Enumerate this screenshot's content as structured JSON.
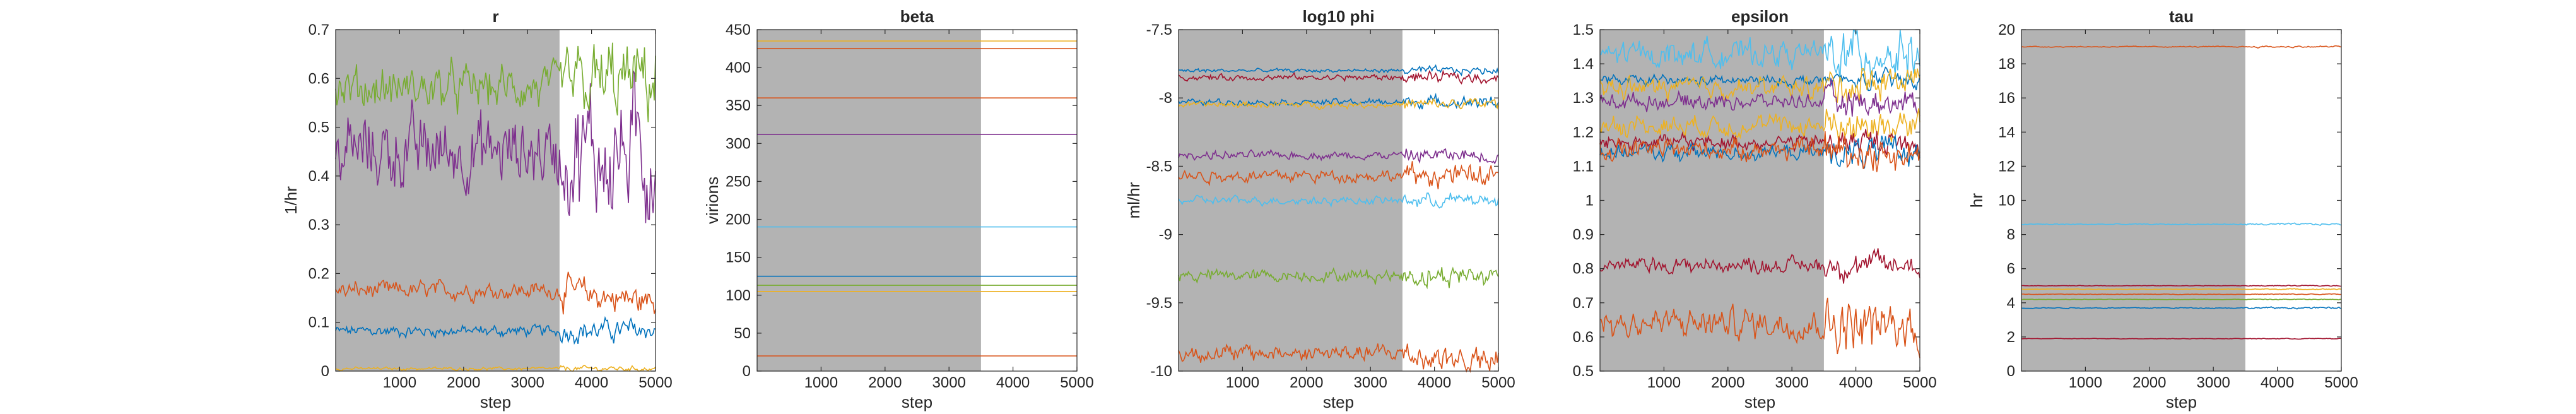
{
  "figure": {
    "xlabel": "step"
  },
  "colors": {
    "shade": "#b3b3b3",
    "series": [
      "#0072bd",
      "#d95319",
      "#edb120",
      "#7e2f8e",
      "#77ac30",
      "#4dbeee",
      "#a2142f"
    ]
  },
  "chart_data": [
    {
      "type": "line",
      "title": "r",
      "xlabel": "step",
      "ylabel": "1/hr",
      "xlim": [
        0,
        5000
      ],
      "ylim": [
        0,
        0.7
      ],
      "xticks": [
        1000,
        2000,
        3000,
        4000,
        5000
      ],
      "yticks": [
        0,
        0.1,
        0.2,
        0.3,
        0.4,
        0.5,
        0.6,
        0.7
      ],
      "burnin_shaded_until": 3500,
      "series": [
        {
          "color_index": 0,
          "level": 0.082,
          "noise": 0.008,
          "end_level": 0.085
        },
        {
          "color_index": 1,
          "level": 0.165,
          "noise": 0.012,
          "end_level": 0.14
        },
        {
          "color_index": 2,
          "level": 0.005,
          "noise": 0.002,
          "end_level": 0.005
        },
        {
          "color_index": 3,
          "level": 0.45,
          "noise": 0.05,
          "end_level": 0.44
        },
        {
          "color_index": 4,
          "level": 0.58,
          "noise": 0.03,
          "end_level": 0.6
        }
      ]
    },
    {
      "type": "line",
      "title": "beta",
      "xlabel": "step",
      "ylabel": "virions",
      "xlim": [
        0,
        5000
      ],
      "ylim": [
        0,
        450
      ],
      "xticks": [
        1000,
        2000,
        3000,
        4000,
        5000
      ],
      "yticks": [
        0,
        50,
        100,
        150,
        200,
        250,
        300,
        350,
        400,
        450
      ],
      "burnin_shaded_until": 3500,
      "series": [
        {
          "color_index": 1,
          "level": 425,
          "noise": 0,
          "end_level": 425
        },
        {
          "color_index": 2,
          "level": 435,
          "noise": 0,
          "end_level": 435
        },
        {
          "color_index": 1,
          "level": 360,
          "noise": 0,
          "end_level": 360
        },
        {
          "color_index": 3,
          "level": 312,
          "noise": 0,
          "end_level": 312
        },
        {
          "color_index": 5,
          "level": 190,
          "noise": 0,
          "end_level": 190
        },
        {
          "color_index": 0,
          "level": 125,
          "noise": 0,
          "end_level": 125
        },
        {
          "color_index": 4,
          "level": 113,
          "noise": 0,
          "end_level": 113
        },
        {
          "color_index": 2,
          "level": 105,
          "noise": 0,
          "end_level": 105
        },
        {
          "color_index": 1,
          "level": 20,
          "noise": 0,
          "end_level": 20
        }
      ]
    },
    {
      "type": "line",
      "title": "log10 phi",
      "xlabel": "step",
      "ylabel": "ml/hr",
      "xlim": [
        0,
        5000
      ],
      "ylim": [
        -10,
        -7.5
      ],
      "xticks": [
        1000,
        2000,
        3000,
        4000,
        5000
      ],
      "yticks": [
        -10,
        -9.5,
        -9,
        -8.5,
        -8,
        -7.5
      ],
      "burnin_shaded_until": 3500,
      "series": [
        {
          "color_index": 0,
          "level": -7.8,
          "noise": 0.01,
          "end_level": -7.8
        },
        {
          "color_index": 6,
          "level": -7.85,
          "noise": 0.015,
          "end_level": -7.85
        },
        {
          "color_index": 0,
          "level": -8.03,
          "noise": 0.015,
          "end_level": -8.03
        },
        {
          "color_index": 2,
          "level": -8.05,
          "noise": 0.015,
          "end_level": -8.04
        },
        {
          "color_index": 3,
          "level": -8.42,
          "noise": 0.02,
          "end_level": -8.42
        },
        {
          "color_index": 1,
          "level": -8.57,
          "noise": 0.03,
          "end_level": -8.57
        },
        {
          "color_index": 5,
          "level": -8.75,
          "noise": 0.02,
          "end_level": -8.75
        },
        {
          "color_index": 4,
          "level": -9.3,
          "noise": 0.03,
          "end_level": -9.3
        },
        {
          "color_index": 1,
          "level": -9.87,
          "noise": 0.04,
          "end_level": -9.95
        }
      ]
    },
    {
      "type": "line",
      "title": "epsilon",
      "xlabel": "step",
      "ylabel": "",
      "xlim": [
        0,
        5000
      ],
      "ylim": [
        0.5,
        1.5
      ],
      "xticks": [
        1000,
        2000,
        3000,
        4000,
        5000
      ],
      "yticks": [
        0.5,
        0.6,
        0.7,
        0.8,
        0.9,
        1,
        1.1,
        1.2,
        1.3,
        1.4,
        1.5
      ],
      "burnin_shaded_until": 3500,
      "series": [
        {
          "color_index": 5,
          "level": 1.43,
          "noise": 0.025,
          "end_level": 1.43
        },
        {
          "color_index": 0,
          "level": 1.35,
          "noise": 0.01,
          "end_level": 1.35
        },
        {
          "color_index": 2,
          "level": 1.33,
          "noise": 0.02,
          "end_level": 1.36
        },
        {
          "color_index": 3,
          "level": 1.29,
          "noise": 0.015,
          "end_level": 1.28
        },
        {
          "color_index": 2,
          "level": 1.22,
          "noise": 0.02,
          "end_level": 1.22
        },
        {
          "color_index": 6,
          "level": 1.17,
          "noise": 0.015,
          "end_level": 1.17
        },
        {
          "color_index": 0,
          "level": 1.14,
          "noise": 0.015,
          "end_level": 1.14
        },
        {
          "color_index": 1,
          "level": 1.15,
          "noise": 0.02,
          "end_level": 1.13
        },
        {
          "color_index": 6,
          "level": 0.81,
          "noise": 0.015,
          "end_level": 0.81
        },
        {
          "color_index": 1,
          "level": 0.64,
          "noise": 0.03,
          "end_level": 0.62
        }
      ]
    },
    {
      "type": "line",
      "title": "tau",
      "xlabel": "step",
      "ylabel": "hr",
      "xlim": [
        0,
        5000
      ],
      "ylim": [
        0,
        20
      ],
      "xticks": [
        1000,
        2000,
        3000,
        4000,
        5000
      ],
      "yticks": [
        0,
        2,
        4,
        6,
        8,
        10,
        12,
        14,
        16,
        18,
        20
      ],
      "burnin_shaded_until": 3500,
      "series": [
        {
          "color_index": 1,
          "level": 19.0,
          "noise": 0.02,
          "end_level": 19.0
        },
        {
          "color_index": 5,
          "level": 8.6,
          "noise": 0.02,
          "end_level": 8.6
        },
        {
          "color_index": 6,
          "level": 5.0,
          "noise": 0.01,
          "end_level": 5.0
        },
        {
          "color_index": 2,
          "level": 4.8,
          "noise": 0.01,
          "end_level": 4.8
        },
        {
          "color_index": 1,
          "level": 4.5,
          "noise": 0.01,
          "end_level": 4.5
        },
        {
          "color_index": 4,
          "level": 4.2,
          "noise": 0.01,
          "end_level": 4.2
        },
        {
          "color_index": 0,
          "level": 3.7,
          "noise": 0.02,
          "end_level": 3.7
        },
        {
          "color_index": 6,
          "level": 1.9,
          "noise": 0.01,
          "end_level": 1.9
        }
      ]
    }
  ]
}
